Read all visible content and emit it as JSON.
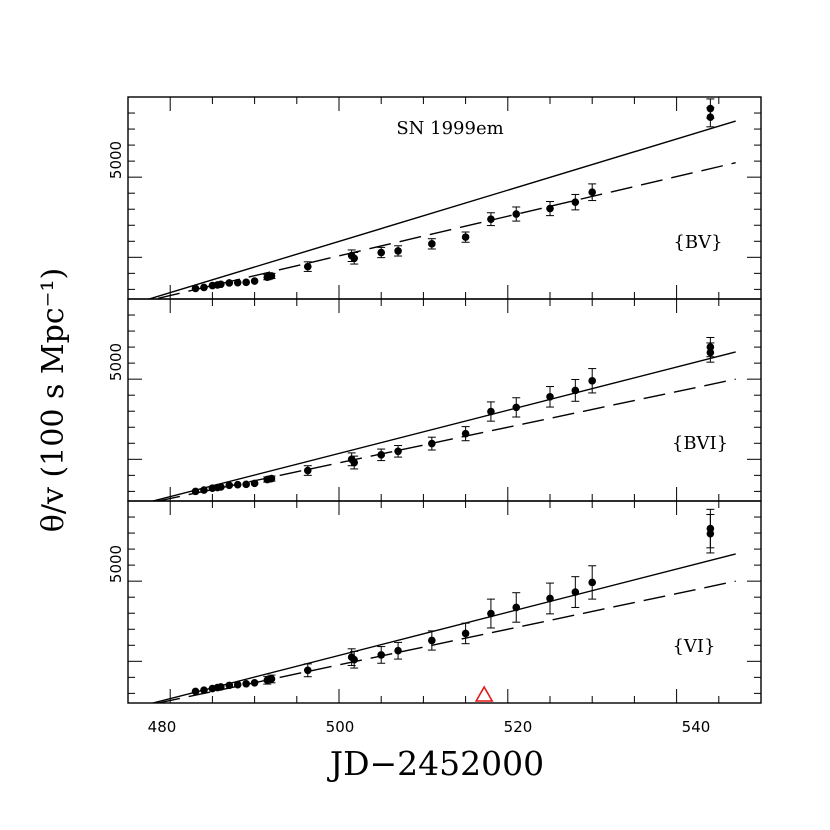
{
  "chart_data": {
    "type": "scatter",
    "title": "SN 1999em",
    "xlabel": "JD−2452000",
    "ylabel": "θ/v (100 s Mpc⁻¹)",
    "xlim": [
      475,
      550
    ],
    "x_ticks": [
      480,
      500,
      520,
      540
    ],
    "x_tick_labels": [
      "480",
      "500",
      "520",
      "540"
    ],
    "ylim": [
      1200,
      7500
    ],
    "y_ticks": [
      5000
    ],
    "y_tick_labels": [
      "5000"
    ],
    "marker_series": {
      "name": "explosion epoch marker",
      "x": 517.2,
      "y": 1200,
      "color": "#e31a1c"
    },
    "panels": [
      {
        "label": "{BV}",
        "x": [
          483,
          484,
          485,
          485.6,
          486,
          487,
          488,
          489,
          490,
          491.5,
          492,
          496.3,
          501.5,
          501.8,
          505,
          507,
          511,
          515,
          518,
          521,
          525,
          528,
          530,
          544,
          544
        ],
        "y": [
          1530,
          1560,
          1620,
          1640,
          1660,
          1700,
          1710,
          1720,
          1760,
          1880,
          1920,
          2210,
          2550,
          2470,
          2650,
          2700,
          2920,
          3130,
          3690,
          3850,
          4020,
          4220,
          4530,
          6870,
          7140
        ],
        "err": [
          40,
          40,
          40,
          40,
          40,
          40,
          40,
          40,
          50,
          80,
          80,
          150,
          180,
          180,
          160,
          160,
          160,
          160,
          200,
          220,
          220,
          240,
          260,
          300,
          300
        ],
        "solid_fit": {
          "x": [
            475,
            547
          ],
          "y": [
            1000,
            6750
          ]
        },
        "dashed_fit": {
          "x": [
            475,
            547
          ],
          "y": [
            1000,
            5450
          ]
        }
      },
      {
        "label": "{BVI}",
        "x": [
          483,
          484,
          485,
          485.6,
          486,
          487,
          488,
          489,
          490,
          491.5,
          492,
          496.3,
          501.5,
          501.8,
          505,
          507,
          511,
          515,
          518,
          521,
          525,
          528,
          530,
          544,
          544
        ],
        "y": [
          1500,
          1540,
          1600,
          1620,
          1640,
          1690,
          1710,
          1720,
          1750,
          1870,
          1900,
          2150,
          2500,
          2400,
          2640,
          2750,
          2990,
          3300,
          3990,
          4120,
          4450,
          4650,
          4950,
          5830,
          6000
        ],
        "err": [
          40,
          40,
          40,
          40,
          40,
          40,
          40,
          40,
          50,
          80,
          80,
          150,
          200,
          200,
          180,
          180,
          200,
          220,
          300,
          300,
          320,
          340,
          380,
          300,
          300
        ],
        "solid_fit": {
          "x": [
            475,
            547
          ],
          "y": [
            1000,
            5850
          ]
        },
        "dashed_fit": {
          "x": [
            475,
            547
          ],
          "y": [
            1000,
            5000
          ]
        }
      },
      {
        "label": "{VI}",
        "x": [
          483,
          484,
          485,
          485.6,
          486,
          487,
          488,
          489,
          490,
          491.5,
          492,
          496.3,
          501.5,
          501.8,
          505,
          507,
          511,
          515,
          518,
          521,
          525,
          528,
          530,
          544,
          544
        ],
        "y": [
          1560,
          1600,
          1650,
          1680,
          1700,
          1750,
          1770,
          1800,
          1830,
          1910,
          1950,
          2220,
          2630,
          2550,
          2700,
          2830,
          3150,
          3370,
          3990,
          4180,
          4460,
          4660,
          4960,
          6480,
          6640
        ],
        "err": [
          50,
          50,
          50,
          50,
          50,
          50,
          50,
          50,
          60,
          120,
          120,
          200,
          260,
          260,
          260,
          260,
          300,
          320,
          450,
          460,
          480,
          480,
          520,
          600,
          600
        ],
        "solid_fit": {
          "x": [
            475,
            547
          ],
          "y": [
            1000,
            5850
          ]
        },
        "dashed_fit": {
          "x": [
            475,
            547
          ],
          "y": [
            1000,
            5000
          ]
        }
      }
    ]
  }
}
